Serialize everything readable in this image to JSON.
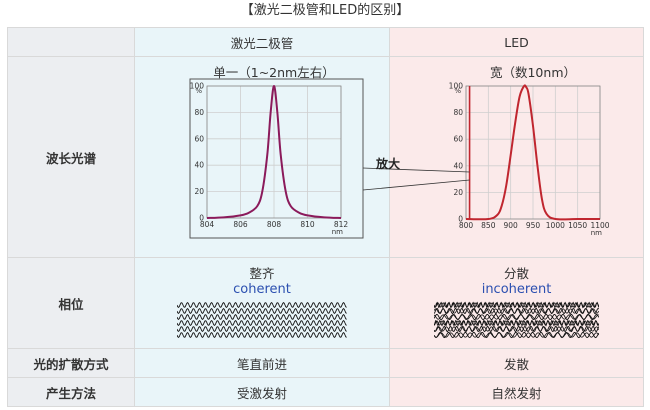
{
  "title": "【激光二极管和LED的区别】",
  "header": {
    "laser": "激光二极管",
    "led": "LED"
  },
  "rows": {
    "spectrum": {
      "label": "波长光谱"
    },
    "phase": {
      "label": "相位",
      "laser_text": "整齐",
      "laser_en": "coherent",
      "led_text": "分散",
      "led_en": "incoherent"
    },
    "diffusion": {
      "label": "光的扩散方式",
      "laser": "笔直前进",
      "led": "发散"
    },
    "method": {
      "label": "产生方法",
      "laser": "受激发射",
      "led": "自然发射"
    }
  },
  "zoom_label": "放大",
  "chart_data": [
    {
      "type": "line",
      "title": "单一（1~2nm左右）",
      "ylabel": "%",
      "xlabel": "nm",
      "x_ticks": [
        804,
        806,
        808,
        810,
        812
      ],
      "y_ticks": [
        0,
        20,
        40,
        60,
        80,
        100
      ],
      "xlim": [
        804,
        812
      ],
      "ylim": [
        0,
        100
      ],
      "color": "#8b1a5b",
      "series": [
        {
          "x": [
            804,
            805,
            806,
            806.5,
            807,
            807.3,
            807.6,
            807.8,
            808,
            808.2,
            808.4,
            808.7,
            809,
            809.5,
            810,
            811,
            812
          ],
          "y": [
            0,
            0.5,
            2,
            4,
            9,
            20,
            48,
            80,
            100,
            80,
            48,
            20,
            9,
            4,
            2,
            0.5,
            0
          ]
        }
      ]
    },
    {
      "type": "line",
      "title": "宽（数10nm）",
      "ylabel": "%",
      "xlabel": "nm",
      "x_ticks": [
        800,
        850,
        900,
        950,
        1000,
        1050,
        1100
      ],
      "y_ticks": [
        0,
        20,
        40,
        60,
        80,
        100
      ],
      "xlim": [
        800,
        1100
      ],
      "ylim": [
        0,
        100
      ],
      "color": "#c0262f",
      "series": [
        {
          "x": [
            800,
            850,
            870,
            880,
            890,
            900,
            910,
            920,
            930,
            935,
            940,
            950,
            960,
            970,
            980,
            1000,
            1050,
            1100
          ],
          "y": [
            0,
            0,
            3,
            10,
            25,
            48,
            72,
            92,
            100,
            99,
            94,
            70,
            40,
            15,
            4,
            0,
            0,
            0
          ]
        }
      ],
      "narrow_peak_x": 808
    }
  ]
}
